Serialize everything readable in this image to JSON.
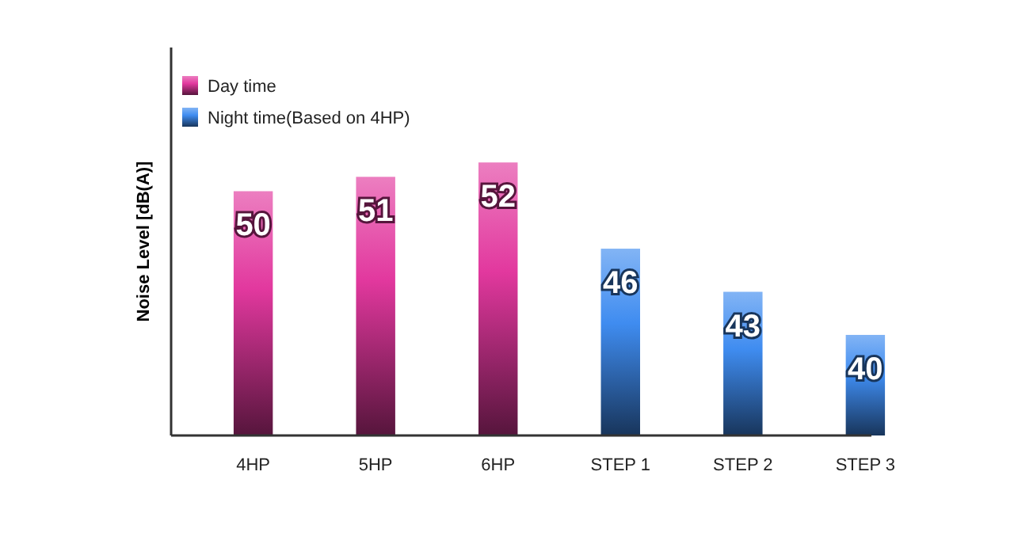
{
  "chart_data": {
    "type": "bar",
    "ylabel": "Noise Level [dB(A)]",
    "categories": [
      "4HP",
      "5HP",
      "6HP",
      "STEP 1",
      "STEP 2",
      "STEP 3"
    ],
    "series": [
      {
        "name": "Day time",
        "color": "#e2389e",
        "values": [
          50,
          51,
          52,
          null,
          null,
          null
        ]
      },
      {
        "name": "Night time(Based on 4HP)",
        "color": "#3f8cf0",
        "values": [
          null,
          null,
          null,
          46,
          43,
          40
        ]
      }
    ],
    "ylim": [
      33,
      60
    ],
    "tick_labels": "x",
    "data_labels": true,
    "legend": "top left",
    "grid": false
  }
}
